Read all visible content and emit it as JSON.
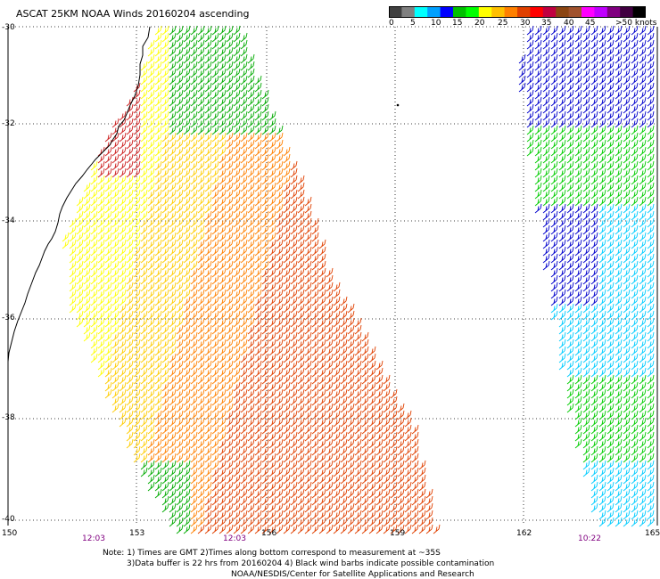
{
  "title": "ASCAT 25KM NOAA Winds 20160204 ascending",
  "colorbar": {
    "colors": [
      "#404040",
      "#808080",
      "#00ffff",
      "#00a0ff",
      "#0000ff",
      "#00c000",
      "#00ff00",
      "#ffff00",
      "#ffc000",
      "#ff8000",
      "#e04000",
      "#ff0000",
      "#c00040",
      "#8b4513",
      "#a0522d",
      "#ff00ff",
      "#c000ff",
      "#800080",
      "#400040",
      "#000000"
    ],
    "labels": [
      "0",
      "5",
      "10",
      "15",
      "20",
      "25",
      "30",
      "35",
      "40",
      "45",
      ">50 knots"
    ]
  },
  "lat_labels": [
    "-30",
    "-32",
    "-34",
    "-36",
    "-38",
    "-40"
  ],
  "lon_labels": [
    "150",
    "153",
    "156",
    "159",
    "162",
    "165"
  ],
  "times": [
    "12:03",
    "12:03",
    "10:22"
  ],
  "notes": [
    "Note: 1) Times are GMT 2)Times along bottom correspond to measurement at ~35S",
    "3)Data buffer is 22 hrs from 20160204 4) Black wind barbs indicate possible contamination",
    "NOAA/NESDIS/Center for Satellite Applications and Research"
  ],
  "swaths": [
    {
      "name": "main-swath",
      "bands": [
        {
          "color": "#00aa00"
        },
        {
          "color": "#ffff00"
        },
        {
          "color": "#ff8000"
        },
        {
          "color": "#e04000"
        }
      ]
    },
    {
      "name": "east-swath",
      "bands": [
        {
          "color": "#0000cc"
        },
        {
          "color": "#00ccff"
        },
        {
          "color": "#00cc00"
        }
      ]
    }
  ]
}
